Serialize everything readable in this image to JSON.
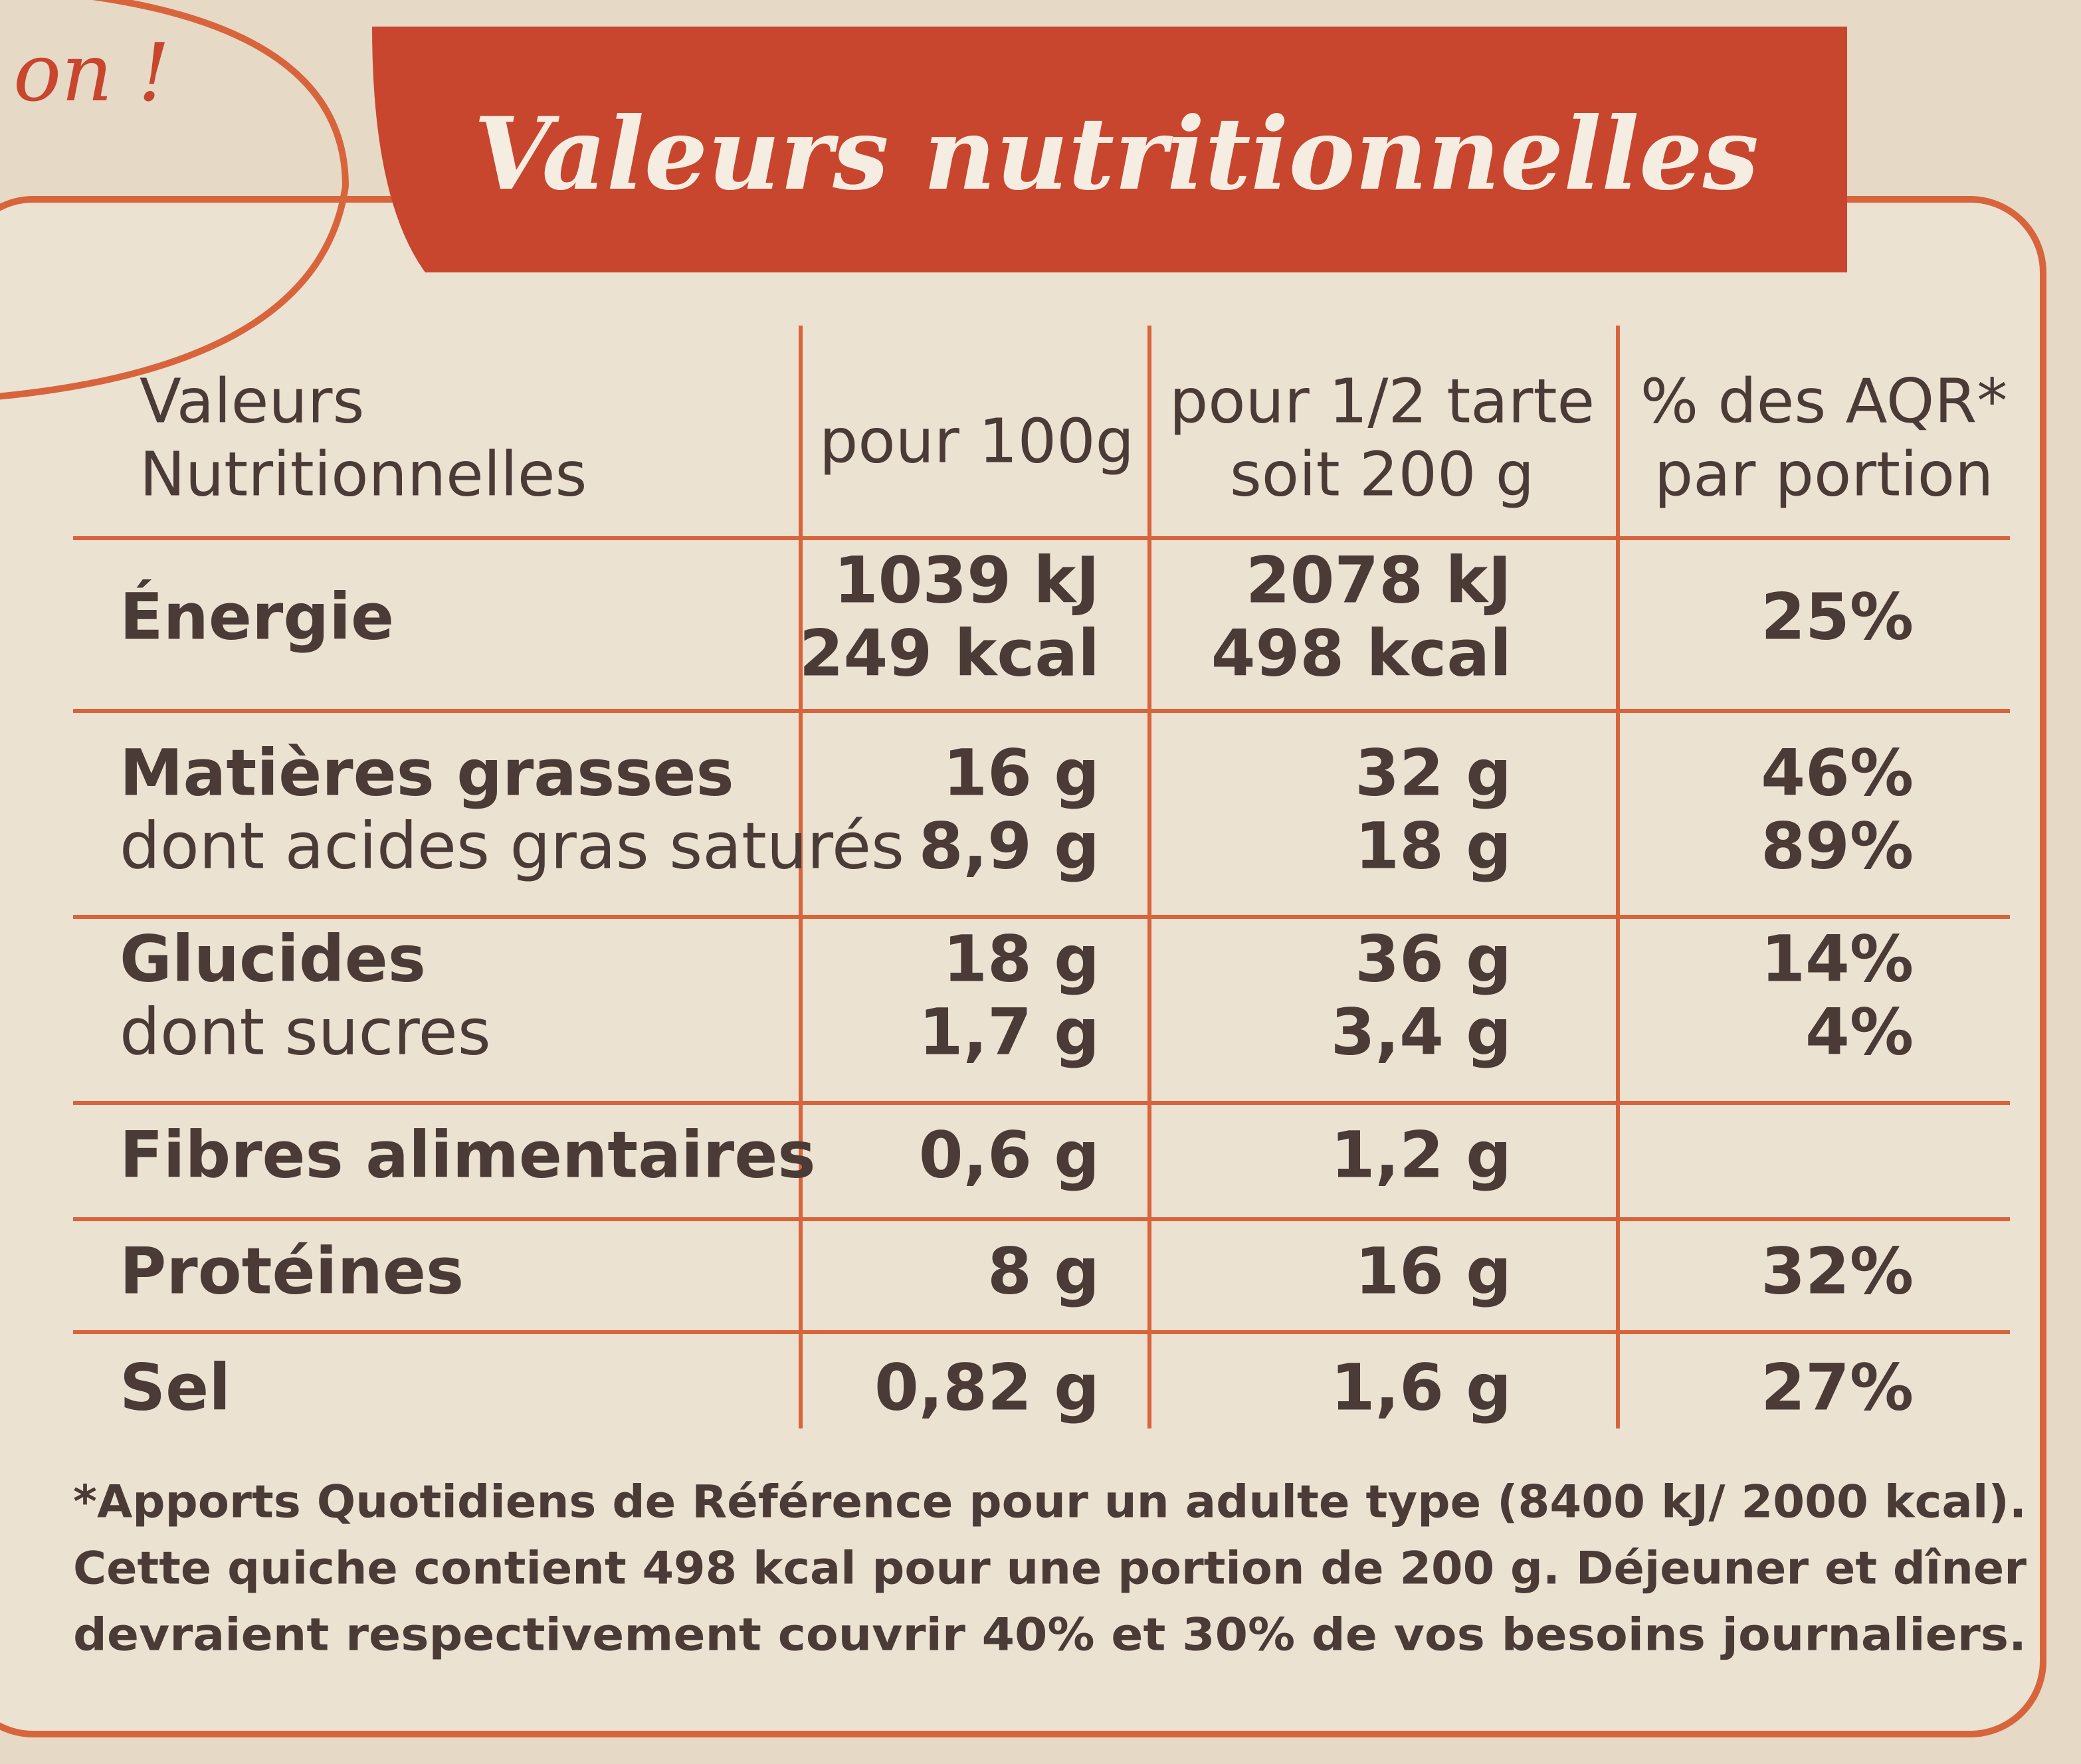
{
  "corner_text": "on !",
  "title": "Valeurs nutritionnelles",
  "table": {
    "header": [
      [
        "Valeurs",
        "Nutritionnelles"
      ],
      [
        "pour 100g"
      ],
      [
        "pour 1/2 tarte",
        "soit 200 g"
      ],
      [
        "% des AQR*",
        "par portion"
      ]
    ],
    "rows": [
      [
        [
          "Énergie"
        ],
        [
          "1039 kJ",
          "249 kcal"
        ],
        [
          "2078 kJ",
          "498 kcal"
        ],
        [
          "25%"
        ]
      ],
      [
        [
          "Matières grasses",
          "dont acides gras saturés"
        ],
        [
          "16 g",
          "8,9 g"
        ],
        [
          "32 g",
          "18 g"
        ],
        [
          "46%",
          "89%"
        ]
      ],
      [
        [
          "Glucides",
          "dont sucres"
        ],
        [
          "18 g",
          "1,7 g"
        ],
        [
          "36 g",
          "3,4 g"
        ],
        [
          "14%",
          "4%"
        ]
      ],
      [
        [
          "Fibres alimentaires"
        ],
        [
          "0,6 g"
        ],
        [
          "1,2 g"
        ],
        []
      ],
      [
        [
          "Protéines"
        ],
        [
          "8 g"
        ],
        [
          "16 g"
        ],
        [
          "32%"
        ]
      ],
      [
        [
          "Sel"
        ],
        [
          "0,82 g"
        ],
        [
          "1,6 g"
        ],
        [
          "27%"
        ]
      ]
    ]
  },
  "footnote": [
    "*Apports Quotidiens de Référence pour un adulte type (8400 kJ/ 2000 kcal).",
    "Cette quiche contient 498 kcal pour une portion de 200 g. Déjeuner et dîner",
    "devraient respectivement couvrir 40% et 30% de vos besoins journaliers."
  ]
}
